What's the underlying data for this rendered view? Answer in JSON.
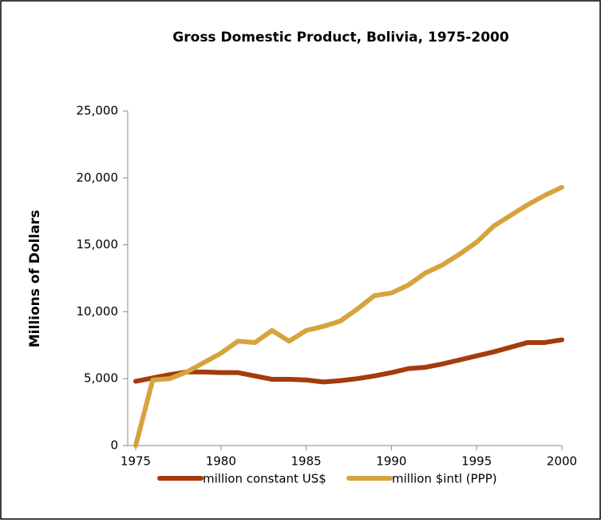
{
  "chart_data": {
    "type": "line",
    "title": "Gross Domestic Product, Bolivia, 1975-2000",
    "y_label": "Millions of Dollars",
    "x": [
      1975,
      1976,
      1977,
      1978,
      1979,
      1980,
      1981,
      1982,
      1983,
      1984,
      1985,
      1986,
      1987,
      1988,
      1989,
      1990,
      1991,
      1992,
      1993,
      1994,
      1995,
      1996,
      1997,
      1998,
      1999,
      2000
    ],
    "series": [
      {
        "name": "million constant US$",
        "color": "#a33c0c",
        "values": [
          4800,
          5050,
          5300,
          5500,
          5500,
          5450,
          5450,
          5200,
          4950,
          4950,
          4900,
          4750,
          4850,
          5000,
          5200,
          5450,
          5750,
          5850,
          6100,
          6400,
          6700,
          7000,
          7350,
          7700,
          7700,
          7900
        ]
      },
      {
        "name": "million $intl (PPP)",
        "color": "#d6a33c",
        "values": [
          0,
          4900,
          5000,
          5500,
          6200,
          6900,
          7800,
          7700,
          8600,
          7800,
          8600,
          8900,
          9300,
          10200,
          11200,
          11400,
          12000,
          12900,
          13500,
          14300,
          15200,
          16400,
          17200,
          18000,
          18700,
          19300
        ]
      }
    ],
    "xlim": [
      1975,
      2000
    ],
    "xticks": [
      1975,
      1980,
      1985,
      1990,
      1995,
      2000
    ],
    "ylim": [
      0,
      25000
    ],
    "yticks": [
      0,
      {
        "value": 5000,
        "label": "5,000"
      },
      {
        "value": 10000,
        "label": "10,000"
      },
      {
        "value": 15000,
        "label": "15,000"
      },
      {
        "value": 20000,
        "label": "20,000"
      },
      {
        "value": 25000,
        "label": "25,000"
      }
    ],
    "legend": "bottom"
  }
}
